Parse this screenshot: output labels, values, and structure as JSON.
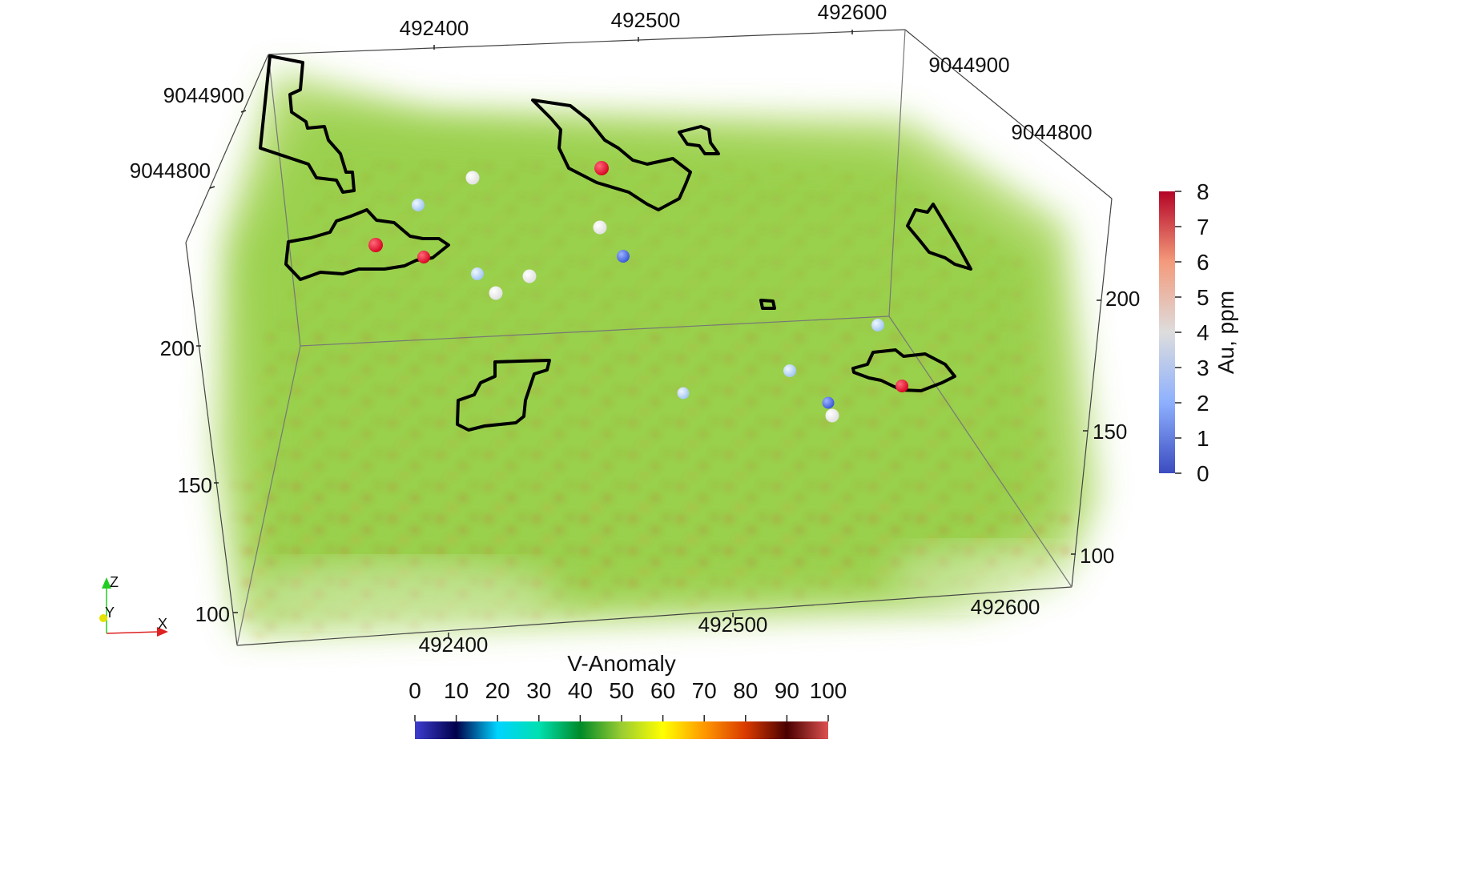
{
  "volume": {
    "x_top_ticks": [
      "492400",
      "492500",
      "492600"
    ],
    "x_bottom_ticks": [
      "492400",
      "492500",
      "492600"
    ],
    "y_left_ticks": [
      "9044900",
      "9044800"
    ],
    "y_right_ticks": [
      "9044900",
      "9044800"
    ],
    "z_left_ticks": [
      "200",
      "150",
      "100"
    ],
    "z_right_ticks": [
      "200",
      "150",
      "100"
    ]
  },
  "orientation": {
    "z": "Z",
    "y": "Y",
    "x": "X"
  },
  "au_colorbar": {
    "title": "Au, ppm",
    "ticks": [
      "0",
      "1",
      "2",
      "3",
      "4",
      "5",
      "6",
      "7",
      "8"
    ],
    "colors": [
      "#3b4cc0",
      "#6a8bef",
      "#a5c4fb",
      "#dddddd",
      "#f5ad8f",
      "#e0604a",
      "#b40426"
    ]
  },
  "v_colorbar": {
    "title": "V-Anomaly",
    "ticks": [
      "0",
      "10",
      "20",
      "30",
      "40",
      "50",
      "60",
      "70",
      "80",
      "90",
      "100"
    ],
    "colors": [
      "#3d3dcf",
      "#00004a",
      "#00d4ff",
      "#00e0b0",
      "#008a28",
      "#9acd32",
      "#ffff00",
      "#ff9900",
      "#d93a00",
      "#4a0000",
      "#dd5050"
    ]
  },
  "samples": [
    {
      "au": 8,
      "color": "#e8102a"
    },
    {
      "au": 8,
      "color": "#e8102a"
    },
    {
      "au": 8,
      "color": "#e8102a"
    },
    {
      "au": 8,
      "color": "#e8102a"
    },
    {
      "au": 4,
      "color": "#ffffff"
    },
    {
      "au": 4,
      "color": "#ffffff"
    },
    {
      "au": 4,
      "color": "#ffffff"
    },
    {
      "au": 4,
      "color": "#ffffff"
    },
    {
      "au": 4,
      "color": "#ffffff"
    },
    {
      "au": 3,
      "color": "#b8d6f5"
    },
    {
      "au": 3,
      "color": "#b8d6f5"
    },
    {
      "au": 3,
      "color": "#b8d6f5"
    },
    {
      "au": 3,
      "color": "#c7e0f7"
    },
    {
      "au": 3,
      "color": "#c7e0f7"
    },
    {
      "au": 1,
      "color": "#4d6fe0"
    },
    {
      "au": 2,
      "color": "#7ea0f0"
    }
  ]
}
